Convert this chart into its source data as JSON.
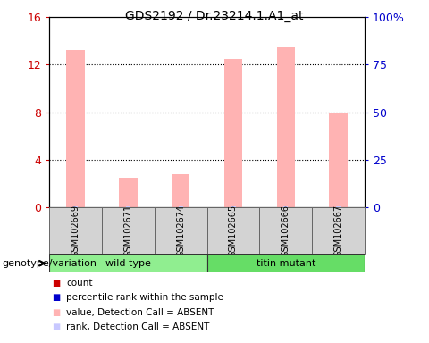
{
  "title": "GDS2192 / Dr.23214.1.A1_at",
  "samples": [
    "GSM102669",
    "GSM102671",
    "GSM102674",
    "GSM102665",
    "GSM102666",
    "GSM102667"
  ],
  "bar_values": [
    13.2,
    2.5,
    2.8,
    12.5,
    13.5,
    8.0
  ],
  "rank_values": [
    0.5,
    0.4,
    0.4,
    0.5,
    0.5,
    0.5
  ],
  "bar_color_absent": "#FFB3B3",
  "rank_color_absent": "#C8C8FF",
  "ylim_left": [
    0,
    16
  ],
  "ylim_right": [
    0,
    100
  ],
  "yticks_left": [
    0,
    4,
    8,
    12,
    16
  ],
  "ytick_labels_left": [
    "0",
    "4",
    "8",
    "12",
    "16"
  ],
  "yticks_right": [
    0,
    25,
    50,
    75,
    100
  ],
  "ytick_labels_right": [
    "0",
    "25",
    "50",
    "75",
    "100%"
  ],
  "groups": [
    {
      "name": "wild type",
      "start": 0,
      "end": 3,
      "color": "#90EE90"
    },
    {
      "name": "titin mutant",
      "start": 3,
      "end": 6,
      "color": "#66DD66"
    }
  ],
  "genotype_label": "genotype/variation",
  "legend_items": [
    {
      "label": "count",
      "color": "#CC0000"
    },
    {
      "label": "percentile rank within the sample",
      "color": "#0000CC"
    },
    {
      "label": "value, Detection Call = ABSENT",
      "color": "#FFB3B3"
    },
    {
      "label": "rank, Detection Call = ABSENT",
      "color": "#C8C8FF"
    }
  ],
  "bar_width": 0.35,
  "bg_color": "#FFFFFF",
  "tick_color_left": "#CC0000",
  "tick_color_right": "#0000CC",
  "sample_box_color": "#D3D3D3",
  "figwidth": 4.8,
  "figheight": 3.84
}
